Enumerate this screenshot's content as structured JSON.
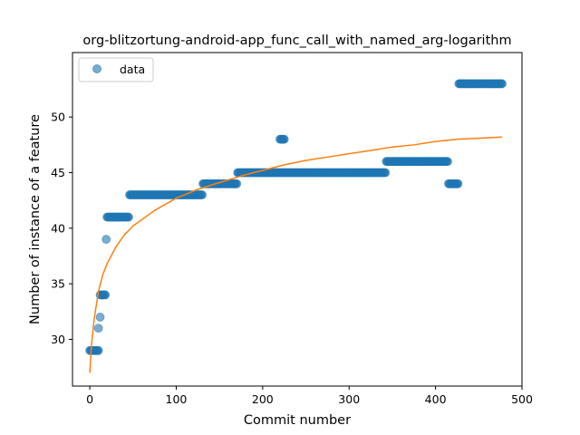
{
  "chart_data": {
    "type": "scatter",
    "title": "org-blitzortung-android-app_func_call_with_named_arg-logarithm",
    "xlabel": "Commit number",
    "ylabel": "Number of instance of a feature",
    "xlim": [
      -20,
      500
    ],
    "ylim": [
      25.8,
      55.8
    ],
    "xticks": [
      0,
      100,
      200,
      300,
      400,
      500
    ],
    "yticks": [
      30,
      35,
      40,
      45,
      50
    ],
    "grid": false,
    "legend": {
      "position": "top-left",
      "entries": [
        "data"
      ]
    },
    "colors": {
      "data": "#1f77b4",
      "fit": "#ff7f0e"
    },
    "series": [
      {
        "name": "data",
        "kind": "scatter",
        "segments": [
          {
            "x_start": 0,
            "x_end": 10,
            "y": 29
          },
          {
            "x_start": 10,
            "x_end": 10,
            "y": 31
          },
          {
            "x_start": 12,
            "x_end": 12,
            "y": 32
          },
          {
            "x_start": 12,
            "x_end": 18,
            "y": 34
          },
          {
            "x_start": 19,
            "x_end": 19,
            "y": 39
          },
          {
            "x_start": 20,
            "x_end": 45,
            "y": 41
          },
          {
            "x_start": 46,
            "x_end": 130,
            "y": 43
          },
          {
            "x_start": 131,
            "x_end": 170,
            "y": 44
          },
          {
            "x_start": 171,
            "x_end": 218,
            "y": 45
          },
          {
            "x_start": 220,
            "x_end": 225,
            "y": 48
          },
          {
            "x_start": 219,
            "x_end": 342,
            "y": 45
          },
          {
            "x_start": 343,
            "x_end": 414,
            "y": 46
          },
          {
            "x_start": 415,
            "x_end": 426,
            "y": 44
          },
          {
            "x_start": 427,
            "x_end": 477,
            "y": 53
          }
        ]
      },
      {
        "kind": "line",
        "model": "logarithm",
        "x_range": [
          0,
          477
        ],
        "curve": [
          [
            0,
            27.0
          ],
          [
            2,
            29.5
          ],
          [
            5,
            31.8
          ],
          [
            10,
            34.3
          ],
          [
            15,
            35.8
          ],
          [
            20,
            36.8
          ],
          [
            30,
            38.3
          ],
          [
            40,
            39.4
          ],
          [
            50,
            40.2
          ],
          [
            75,
            41.6
          ],
          [
            100,
            42.7
          ],
          [
            125,
            43.5
          ],
          [
            150,
            44.1
          ],
          [
            175,
            44.7
          ],
          [
            200,
            45.2
          ],
          [
            225,
            45.7
          ],
          [
            250,
            46.1
          ],
          [
            275,
            46.4
          ],
          [
            300,
            46.7
          ],
          [
            325,
            47.0
          ],
          [
            350,
            47.3
          ],
          [
            375,
            47.5
          ],
          [
            400,
            47.8
          ],
          [
            425,
            48.0
          ],
          [
            450,
            48.1
          ],
          [
            477,
            48.2
          ]
        ]
      }
    ]
  }
}
